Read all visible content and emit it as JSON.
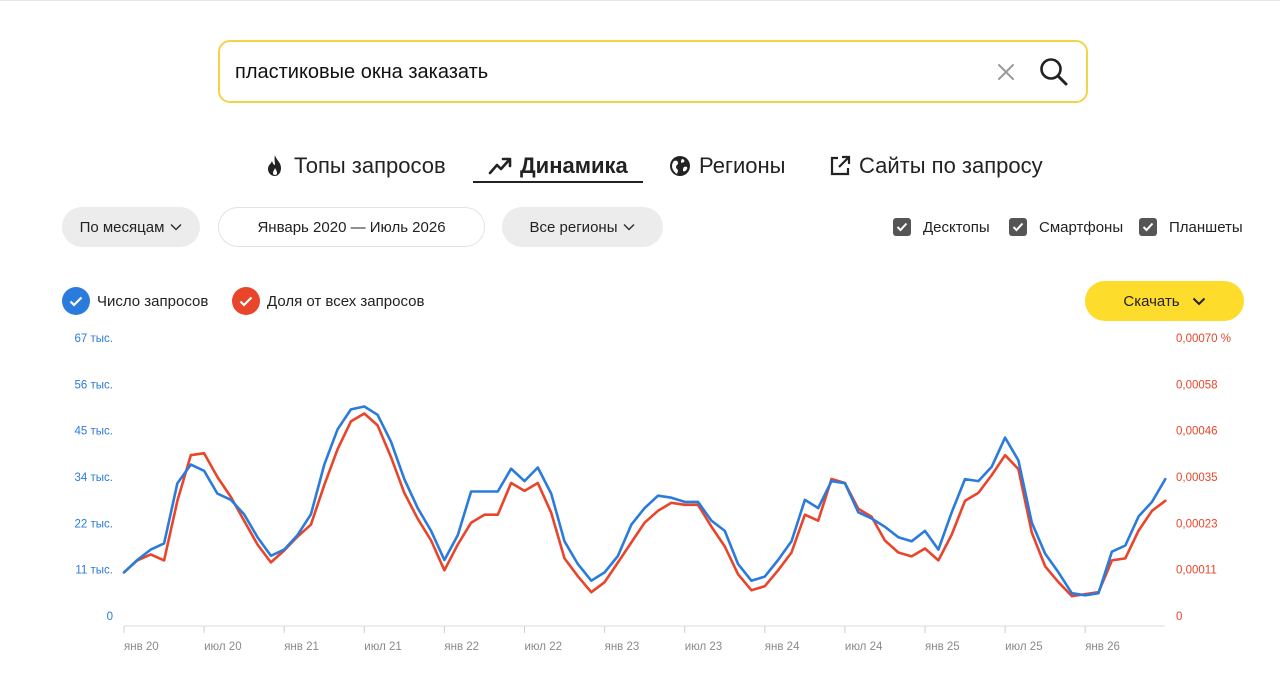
{
  "search": {
    "query": "пластиковые окна заказать"
  },
  "tabs": [
    {
      "label": "Топы запросов",
      "icon": "fire-icon",
      "active": false
    },
    {
      "label": "Динамика",
      "icon": "trend-icon",
      "active": true
    },
    {
      "label": "Регионы",
      "icon": "globe-icon",
      "active": false
    },
    {
      "label": "Сайты по запросу",
      "icon": "external-link-icon",
      "active": false
    }
  ],
  "filters": {
    "period": "По месяцам",
    "date_range": "Январь 2020 — Июль 2026",
    "region": "Все регионы"
  },
  "devices": [
    {
      "label": "Десктопы",
      "checked": true
    },
    {
      "label": "Смартфоны",
      "checked": true
    },
    {
      "label": "Планшеты",
      "checked": true
    }
  ],
  "legend": {
    "count": "Число запросов",
    "share": "Доля от всех запросов"
  },
  "download_label": "Скачать",
  "colors": {
    "count": "#2a7bdc",
    "share": "#e8452a",
    "accent": "#fddc2c",
    "search_border": "#f0d54a"
  },
  "chart_data": {
    "type": "line",
    "x_tick_labels": [
      "янв 20",
      "июл 20",
      "янв 21",
      "июл 21",
      "янв 22",
      "июл 22",
      "янв 23",
      "июл 23",
      "янв 24",
      "июл 24",
      "янв 25",
      "июл 25",
      "янв 26"
    ],
    "y_left_ticks": [
      "0",
      "11 тыс.",
      "22 тыс.",
      "34 тыс.",
      "45 тыс.",
      "56 тыс.",
      "67 тыс."
    ],
    "y_right_ticks": [
      "0",
      "0,00011",
      "0,00023",
      "0,00035",
      "0,00046",
      "0,00058",
      "0,00070 %"
    ],
    "y_left_range": [
      0,
      67000
    ],
    "y_right_range": [
      0,
      0.0007
    ],
    "x_start": "2020-01",
    "grid": false,
    "series": [
      {
        "name": "Число запросов",
        "axis": "left",
        "values": [
          10500,
          13500,
          16000,
          17500,
          32000,
          36500,
          35000,
          29500,
          28000,
          24500,
          19000,
          14500,
          16000,
          19500,
          24500,
          36500,
          45000,
          49800,
          50500,
          48500,
          42000,
          33000,
          26000,
          20500,
          13500,
          19500,
          30000,
          30000,
          30000,
          35500,
          32500,
          35800,
          29500,
          18000,
          12500,
          8500,
          10500,
          14500,
          22000,
          26000,
          29000,
          28500,
          27500,
          27500,
          23000,
          20500,
          12500,
          8500,
          9500,
          13500,
          18000,
          28000,
          26000,
          32500,
          32000,
          25000,
          23500,
          21500,
          19000,
          18000,
          20500,
          16000,
          25000,
          33000,
          32500,
          36000,
          43000,
          37500,
          22500,
          15000,
          10500,
          5500,
          5000,
          5500,
          15500,
          17000,
          24000,
          27500,
          33000
        ]
      },
      {
        "name": "Доля от всех запросов",
        "axis": "right",
        "values": [
          0.00011,
          0.00014,
          0.000155,
          0.00014,
          0.00029,
          0.000405,
          0.00041,
          0.00035,
          0.0003,
          0.00024,
          0.00018,
          0.000135,
          0.000165,
          0.0002,
          0.00023,
          0.00033,
          0.00042,
          0.00049,
          0.00051,
          0.00048,
          0.0004,
          0.00031,
          0.000245,
          0.00019,
          0.000115,
          0.00018,
          0.000235,
          0.000255,
          0.000255,
          0.000335,
          0.000315,
          0.000335,
          0.00026,
          0.000145,
          0.0001,
          6e-05,
          8.5e-05,
          0.000135,
          0.000185,
          0.000235,
          0.000265,
          0.000285,
          0.00028,
          0.00028,
          0.000225,
          0.000175,
          0.000105,
          6.5e-05,
          7.5e-05,
          0.000115,
          0.00016,
          0.000255,
          0.00024,
          0.000345,
          0.000335,
          0.00027,
          0.00025,
          0.00019,
          0.00016,
          0.00015,
          0.00017,
          0.00014,
          0.000205,
          0.00029,
          0.00031,
          0.000355,
          0.000405,
          0.00037,
          0.00021,
          0.000125,
          8.5e-05,
          5e-05,
          5.5e-05,
          6e-05,
          0.00014,
          0.000145,
          0.000215,
          0.000265,
          0.00029
        ]
      }
    ]
  }
}
